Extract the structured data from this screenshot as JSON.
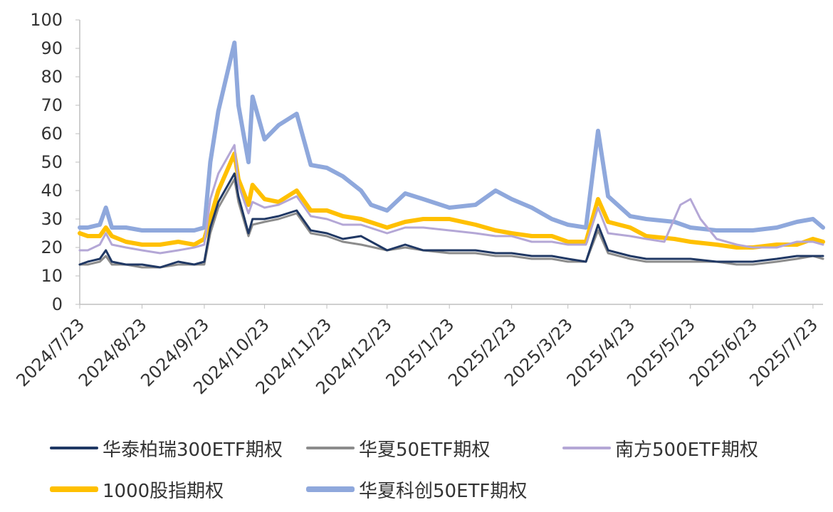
{
  "chart_data": {
    "type": "line",
    "title": "",
    "xlabel": "",
    "ylabel": "",
    "ylim": [
      0,
      100
    ],
    "yticks": [
      "0",
      "10",
      "20",
      "30",
      "40",
      "50",
      "60",
      "70",
      "80",
      "90",
      "100"
    ],
    "x_tick_labels": [
      "2024/7/23",
      "2024/8/23",
      "2024/9/23",
      "2024/10/23",
      "2024/11/23",
      "2024/12/23",
      "2025/1/23",
      "2025/2/23",
      "2025/3/23",
      "2025/4/23",
      "2025/5/23",
      "2025/6/23",
      "2025/7/23"
    ],
    "grid": false,
    "legend_position": "bottom",
    "series": [
      {
        "name": "华泰柏瑞300ETF期权",
        "color": "#203864",
        "points": [
          [
            "2024/7/23",
            14
          ],
          [
            "2024/7/27",
            15
          ],
          [
            "2024/8/2",
            16
          ],
          [
            "2024/8/5",
            19
          ],
          [
            "2024/8/8",
            15
          ],
          [
            "2024/8/15",
            14
          ],
          [
            "2024/8/23",
            14
          ],
          [
            "2024/9/1",
            13
          ],
          [
            "2024/9/10",
            15
          ],
          [
            "2024/9/18",
            14
          ],
          [
            "2024/9/23",
            15
          ],
          [
            "2024/9/26",
            27
          ],
          [
            "2024/9/30",
            36
          ],
          [
            "2024/10/8",
            46
          ],
          [
            "2024/10/10",
            38
          ],
          [
            "2024/10/15",
            25
          ],
          [
            "2024/10/17",
            30
          ],
          [
            "2024/10/23",
            30
          ],
          [
            "2024/10/30",
            31
          ],
          [
            "2024/11/8",
            33
          ],
          [
            "2024/11/15",
            26
          ],
          [
            "2024/11/23",
            25
          ],
          [
            "2024/12/1",
            23
          ],
          [
            "2024/12/10",
            24
          ],
          [
            "2024/12/23",
            19
          ],
          [
            "2025/1/1",
            21
          ],
          [
            "2025/1/10",
            19
          ],
          [
            "2025/1/23",
            19
          ],
          [
            "2025/2/5",
            19
          ],
          [
            "2025/2/15",
            18
          ],
          [
            "2025/2/23",
            18
          ],
          [
            "2025/3/5",
            17
          ],
          [
            "2025/3/15",
            17
          ],
          [
            "2025/3/23",
            16
          ],
          [
            "2025/4/1",
            15
          ],
          [
            "2025/4/7",
            28
          ],
          [
            "2025/4/12",
            19
          ],
          [
            "2025/4/23",
            17
          ],
          [
            "2025/5/1",
            16
          ],
          [
            "2025/5/15",
            16
          ],
          [
            "2025/5/23",
            16
          ],
          [
            "2025/6/5",
            15
          ],
          [
            "2025/6/15",
            15
          ],
          [
            "2025/6/23",
            15
          ],
          [
            "2025/7/5",
            16
          ],
          [
            "2025/7/15",
            17
          ],
          [
            "2025/7/23",
            17
          ],
          [
            "2025/7/28",
            17
          ]
        ]
      },
      {
        "name": "华夏50ETF期权",
        "color": "#8c8c8c",
        "points": [
          [
            "2024/7/23",
            14
          ],
          [
            "2024/7/27",
            14
          ],
          [
            "2024/8/2",
            15
          ],
          [
            "2024/8/5",
            17
          ],
          [
            "2024/8/8",
            14
          ],
          [
            "2024/8/15",
            14
          ],
          [
            "2024/8/23",
            13
          ],
          [
            "2024/9/1",
            13
          ],
          [
            "2024/9/10",
            14
          ],
          [
            "2024/9/18",
            14
          ],
          [
            "2024/9/23",
            14
          ],
          [
            "2024/9/26",
            25
          ],
          [
            "2024/9/30",
            34
          ],
          [
            "2024/10/8",
            44
          ],
          [
            "2024/10/10",
            36
          ],
          [
            "2024/10/15",
            24
          ],
          [
            "2024/10/17",
            28
          ],
          [
            "2024/10/23",
            29
          ],
          [
            "2024/10/30",
            30
          ],
          [
            "2024/11/8",
            32
          ],
          [
            "2024/11/15",
            25
          ],
          [
            "2024/11/23",
            24
          ],
          [
            "2024/12/1",
            22
          ],
          [
            "2024/12/10",
            21
          ],
          [
            "2024/12/23",
            19
          ],
          [
            "2025/1/1",
            20
          ],
          [
            "2025/1/10",
            19
          ],
          [
            "2025/1/23",
            18
          ],
          [
            "2025/2/5",
            18
          ],
          [
            "2025/2/15",
            17
          ],
          [
            "2025/2/23",
            17
          ],
          [
            "2025/3/5",
            16
          ],
          [
            "2025/3/15",
            16
          ],
          [
            "2025/3/23",
            15
          ],
          [
            "2025/4/1",
            15
          ],
          [
            "2025/4/7",
            26
          ],
          [
            "2025/4/12",
            18
          ],
          [
            "2025/4/23",
            16
          ],
          [
            "2025/5/1",
            15
          ],
          [
            "2025/5/15",
            15
          ],
          [
            "2025/5/23",
            15
          ],
          [
            "2025/6/5",
            15
          ],
          [
            "2025/6/15",
            14
          ],
          [
            "2025/6/23",
            14
          ],
          [
            "2025/7/5",
            15
          ],
          [
            "2025/7/15",
            16
          ],
          [
            "2025/7/23",
            17
          ],
          [
            "2025/7/28",
            16
          ]
        ]
      },
      {
        "name": "南方500ETF期权",
        "color": "#b4a7d6",
        "points": [
          [
            "2024/7/23",
            19
          ],
          [
            "2024/7/27",
            19
          ],
          [
            "2024/8/2",
            21
          ],
          [
            "2024/8/5",
            25
          ],
          [
            "2024/8/8",
            21
          ],
          [
            "2024/8/15",
            20
          ],
          [
            "2024/8/23",
            19
          ],
          [
            "2024/9/1",
            18
          ],
          [
            "2024/9/10",
            19
          ],
          [
            "2024/9/18",
            20
          ],
          [
            "2024/9/23",
            21
          ],
          [
            "2024/9/26",
            37
          ],
          [
            "2024/9/30",
            46
          ],
          [
            "2024/10/8",
            56
          ],
          [
            "2024/10/10",
            42
          ],
          [
            "2024/10/15",
            32
          ],
          [
            "2024/10/17",
            36
          ],
          [
            "2024/10/23",
            34
          ],
          [
            "2024/10/30",
            35
          ],
          [
            "2024/11/8",
            38
          ],
          [
            "2024/11/15",
            31
          ],
          [
            "2024/11/23",
            30
          ],
          [
            "2024/12/1",
            28
          ],
          [
            "2024/12/10",
            28
          ],
          [
            "2024/12/23",
            25
          ],
          [
            "2025/1/1",
            27
          ],
          [
            "2025/1/10",
            27
          ],
          [
            "2025/1/23",
            26
          ],
          [
            "2025/2/5",
            25
          ],
          [
            "2025/2/15",
            24
          ],
          [
            "2025/2/23",
            24
          ],
          [
            "2025/3/5",
            22
          ],
          [
            "2025/3/15",
            22
          ],
          [
            "2025/3/23",
            21
          ],
          [
            "2025/4/1",
            21
          ],
          [
            "2025/4/7",
            34
          ],
          [
            "2025/4/12",
            25
          ],
          [
            "2025/4/23",
            24
          ],
          [
            "2025/5/1",
            23
          ],
          [
            "2025/5/10",
            22
          ],
          [
            "2025/5/18",
            35
          ],
          [
            "2025/5/23",
            37
          ],
          [
            "2025/5/28",
            30
          ],
          [
            "2025/6/5",
            23
          ],
          [
            "2025/6/15",
            21
          ],
          [
            "2025/6/23",
            20
          ],
          [
            "2025/7/5",
            20
          ],
          [
            "2025/7/15",
            22
          ],
          [
            "2025/7/23",
            22
          ],
          [
            "2025/7/28",
            21
          ]
        ]
      },
      {
        "name": "1000股指期权",
        "color": "#ffc000",
        "points": [
          [
            "2024/7/23",
            25
          ],
          [
            "2024/7/27",
            24
          ],
          [
            "2024/8/2",
            24
          ],
          [
            "2024/8/5",
            27
          ],
          [
            "2024/8/8",
            24
          ],
          [
            "2024/8/15",
            22
          ],
          [
            "2024/8/23",
            21
          ],
          [
            "2024/9/1",
            21
          ],
          [
            "2024/9/10",
            22
          ],
          [
            "2024/9/18",
            21
          ],
          [
            "2024/9/23",
            23
          ],
          [
            "2024/9/26",
            30
          ],
          [
            "2024/9/30",
            40
          ],
          [
            "2024/10/8",
            53
          ],
          [
            "2024/10/10",
            44
          ],
          [
            "2024/10/15",
            35
          ],
          [
            "2024/10/17",
            42
          ],
          [
            "2024/10/23",
            37
          ],
          [
            "2024/10/30",
            36
          ],
          [
            "2024/11/8",
            40
          ],
          [
            "2024/11/15",
            33
          ],
          [
            "2024/11/23",
            33
          ],
          [
            "2024/12/1",
            31
          ],
          [
            "2024/12/10",
            30
          ],
          [
            "2024/12/23",
            27
          ],
          [
            "2025/1/1",
            29
          ],
          [
            "2025/1/10",
            30
          ],
          [
            "2025/1/23",
            30
          ],
          [
            "2025/2/5",
            28
          ],
          [
            "2025/2/15",
            26
          ],
          [
            "2025/2/23",
            25
          ],
          [
            "2025/3/5",
            24
          ],
          [
            "2025/3/15",
            24
          ],
          [
            "2025/3/23",
            22
          ],
          [
            "2025/4/1",
            22
          ],
          [
            "2025/4/7",
            37
          ],
          [
            "2025/4/12",
            29
          ],
          [
            "2025/4/23",
            27
          ],
          [
            "2025/5/1",
            24
          ],
          [
            "2025/5/15",
            23
          ],
          [
            "2025/5/23",
            22
          ],
          [
            "2025/6/5",
            21
          ],
          [
            "2025/6/15",
            20
          ],
          [
            "2025/6/23",
            20
          ],
          [
            "2025/7/5",
            21
          ],
          [
            "2025/7/15",
            21
          ],
          [
            "2025/7/23",
            23
          ],
          [
            "2025/7/28",
            22
          ]
        ]
      },
      {
        "name": "华夏科创50ETF期权",
        "color": "#8fa8dc",
        "points": [
          [
            "2024/7/23",
            27
          ],
          [
            "2024/7/27",
            27
          ],
          [
            "2024/8/2",
            28
          ],
          [
            "2024/8/5",
            34
          ],
          [
            "2024/8/8",
            27
          ],
          [
            "2024/8/15",
            27
          ],
          [
            "2024/8/23",
            26
          ],
          [
            "2024/9/1",
            26
          ],
          [
            "2024/9/10",
            26
          ],
          [
            "2024/9/18",
            26
          ],
          [
            "2024/9/23",
            27
          ],
          [
            "2024/9/26",
            50
          ],
          [
            "2024/9/30",
            68
          ],
          [
            "2024/10/8",
            92
          ],
          [
            "2024/10/10",
            70
          ],
          [
            "2024/10/15",
            50
          ],
          [
            "2024/10/17",
            73
          ],
          [
            "2024/10/23",
            58
          ],
          [
            "2024/10/30",
            63
          ],
          [
            "2024/11/8",
            67
          ],
          [
            "2024/11/15",
            49
          ],
          [
            "2024/11/23",
            48
          ],
          [
            "2024/12/1",
            45
          ],
          [
            "2024/12/10",
            40
          ],
          [
            "2024/12/15",
            35
          ],
          [
            "2024/12/23",
            33
          ],
          [
            "2025/1/1",
            39
          ],
          [
            "2025/1/10",
            37
          ],
          [
            "2025/1/23",
            34
          ],
          [
            "2025/2/5",
            35
          ],
          [
            "2025/2/15",
            40
          ],
          [
            "2025/2/23",
            37
          ],
          [
            "2025/3/5",
            34
          ],
          [
            "2025/3/15",
            30
          ],
          [
            "2025/3/23",
            28
          ],
          [
            "2025/4/1",
            27
          ],
          [
            "2025/4/7",
            61
          ],
          [
            "2025/4/12",
            38
          ],
          [
            "2025/4/23",
            31
          ],
          [
            "2025/5/1",
            30
          ],
          [
            "2025/5/15",
            29
          ],
          [
            "2025/5/23",
            27
          ],
          [
            "2025/6/5",
            26
          ],
          [
            "2025/6/15",
            26
          ],
          [
            "2025/6/23",
            26
          ],
          [
            "2025/7/5",
            27
          ],
          [
            "2025/7/15",
            29
          ],
          [
            "2025/7/23",
            30
          ],
          [
            "2025/7/28",
            27
          ]
        ]
      }
    ]
  }
}
